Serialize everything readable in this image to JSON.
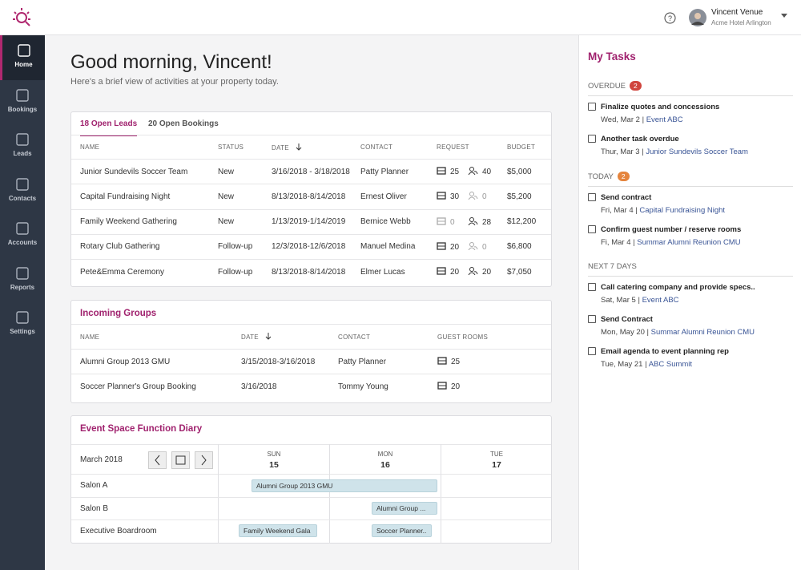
{
  "header": {
    "user_name": "Vincent Venue",
    "property": "Acme Hotel Arlington"
  },
  "nav": {
    "active": 0,
    "items": [
      "Home",
      "Bookings",
      "Leads",
      "Contacts",
      "Accounts",
      "Reports",
      "Settings"
    ]
  },
  "greeting": {
    "title": "Good morning, Vincent!",
    "subtitle": "Here's a brief view of activities at your property today."
  },
  "leads": {
    "tabs": [
      "18 Open Leads",
      "20 Open Bookings"
    ],
    "columns": [
      "NAME",
      "STATUS",
      "DATE",
      "CONTACT",
      "REQUEST",
      "BUDGET"
    ],
    "rows": [
      [
        "Junior Sundevils Soccer Team",
        "New",
        "3/16/2018 - 3/18/2018",
        "Patty Planner",
        25,
        40,
        "$5,000"
      ],
      [
        "Capital Fundraising Night",
        "New",
        "8/13/2018-8/14/2018",
        "Ernest Oliver",
        30,
        0,
        "$5,200"
      ],
      [
        "Family Weekend Gathering",
        "New",
        "1/13/2019-1/14/2019",
        "Bernice Webb",
        0,
        28,
        "$12,200"
      ],
      [
        "Rotary Club Gathering",
        "Follow-up",
        "12/3/2018-12/6/2018",
        "Manuel Medina",
        20,
        0,
        "$6,800"
      ],
      [
        "Pete&Emma Ceremony",
        "Follow-up",
        "8/13/2018-8/14/2018",
        "Elmer Lucas",
        20,
        20,
        "$7,050"
      ]
    ]
  },
  "groups": {
    "title": "Incoming Groups",
    "columns": [
      "NAME",
      "DATE",
      "CONTACT",
      "GUEST ROOMS"
    ],
    "rows": [
      [
        "Alumni Group 2013 GMU",
        "3/15/2018-3/16/2018",
        "Patty Planner",
        25
      ],
      [
        "Soccer Planner's Group Booking",
        "3/16/2018",
        "Tommy Young",
        20
      ]
    ]
  },
  "diary": {
    "title": "Event Space Function Diary",
    "month": "March 2018",
    "days": [
      {
        "dow": "SUN",
        "day": 15
      },
      {
        "dow": "MON",
        "day": 16
      },
      {
        "dow": "TUE",
        "day": 17
      }
    ],
    "rooms": [
      "Salon A",
      "Salon B",
      "Executive Boardroom"
    ],
    "events": [
      {
        "room": 0,
        "label": "Alumni Group 2013 GMU"
      },
      {
        "room": 1,
        "label": "Alumni Group ..."
      },
      {
        "room": 2,
        "label": "Family Weekend Gala"
      },
      {
        "room": 2,
        "label": "Soccer Planner.."
      }
    ]
  },
  "tasks": {
    "title": "My Tasks",
    "sections": [
      {
        "label": "OVERDUE",
        "count": 2,
        "color": "#d0453e",
        "items": [
          {
            "title": "Finalize quotes and concessions",
            "date": "Wed, Mar 2",
            "link": "Event ABC"
          },
          {
            "title": "Another task overdue",
            "date": "Thur, Mar 3",
            "link": "Junior Sundevils Soccer Team"
          }
        ]
      },
      {
        "label": "TODAY",
        "count": 2,
        "color": "#e5843c",
        "items": [
          {
            "title": "Send contract",
            "date": "Fri, Mar 4",
            "link": "Capital Fundraising Night"
          },
          {
            "title": "Confirm guest number / reserve rooms",
            "date": "Fi, Mar 4",
            "link": "Summar Alumni Reunion CMU"
          }
        ]
      },
      {
        "label": "NEXT 7 DAYS",
        "count": null,
        "color": null,
        "items": [
          {
            "title": "Call catering company and provide specs..",
            "date": "Sat, Mar 5",
            "link": "Event ABC"
          },
          {
            "title": "Send Contract",
            "date": "Mon, May 20",
            "link": "Summar Alumni Reunion CMU"
          },
          {
            "title": "Email agenda to event planning rep",
            "date": "Tue, May 21",
            "link": "ABC Summit"
          }
        ]
      }
    ]
  }
}
